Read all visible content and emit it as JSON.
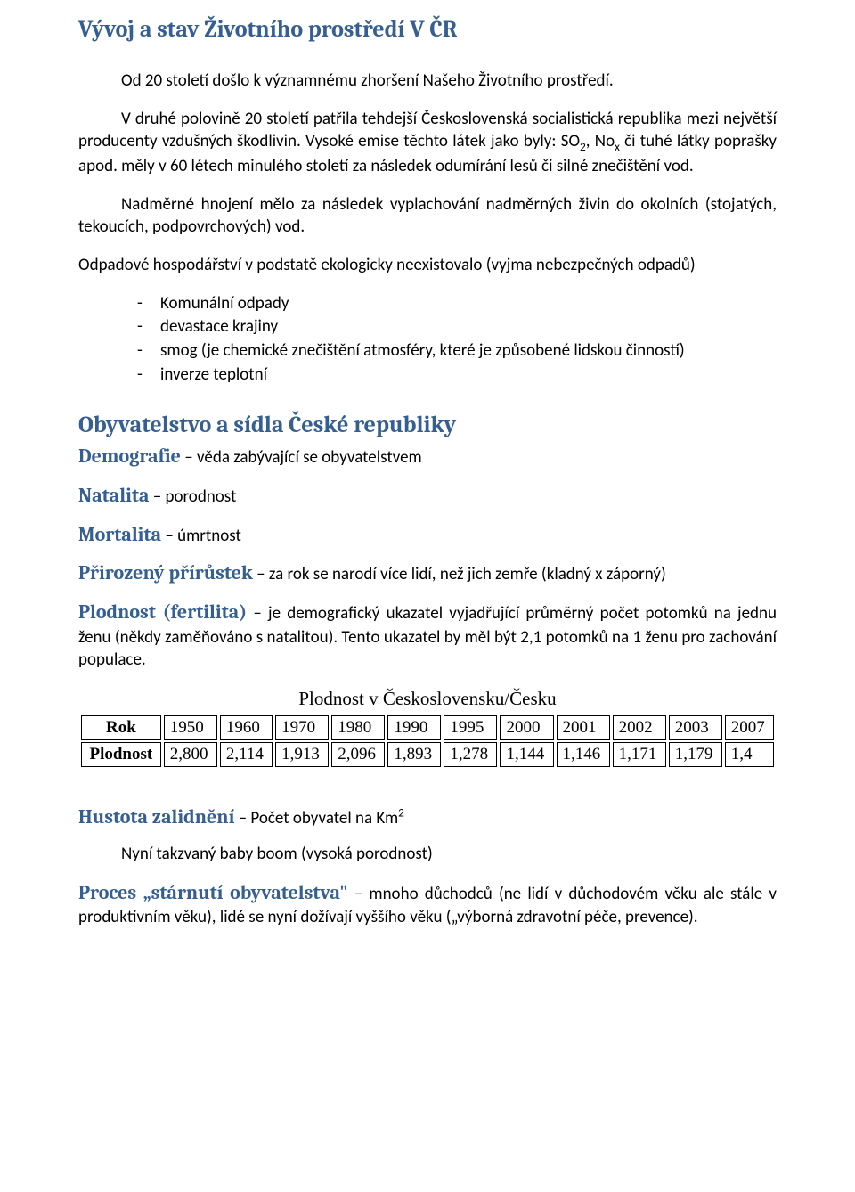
{
  "h1": "Vývoj a stav Životního prostředí V ČR",
  "p1": "Od 20 století došlo k významnému zhoršení Našeho Životního prostředí.",
  "p2a": "V druhé polovině 20 století patřila tehdejší Československá socialistická republika mezi největší producenty vzdušných škodlivin. Vysoké emise těchto látek jako byly: SO",
  "p2sub1": "2",
  "p2b": ", No",
  "p2sub2": "x",
  "p2c": " či tuhé látky poprašky apod. měly v 60 létech minulého století za následek odumírání lesů či silné znečištění vod.",
  "p3": "Nadměrné hnojení mělo za následek vyplachování nadměrných živin do okolních (stojatých, tekoucích, podpovrchových) vod.",
  "p4": "Odpadové hospodářství v podstatě ekologicky neexistovalo (vyjma nebezpečných odpadů)",
  "bullets": [
    "Komunální odpady",
    "devastace krajiny",
    "smog (je chemické znečištění atmosféry, které je způsobené lidskou činností)",
    "inverze teplotní"
  ],
  "h2": "Obyvatelstvo a sídla České republiky",
  "defs": {
    "demografie_t": "Demografie",
    "demografie_d": " – věda zabývající se obyvatelstvem",
    "natalita_t": "Natalita",
    "natalita_d": " – porodnost",
    "mortalita_t": "Mortalita",
    "mortalita_d": " – úmrtnost",
    "prirustek_t": "Přirozený přírůstek",
    "prirustek_d": " – za rok se narodí více lidí, než jich zemře (kladný x záporný)",
    "plodnost_t": "Plodnost (fertilita)",
    "plodnost_d": " – je demografický ukazatel vyjadřující průměrný počet potomků na jednu ženu (někdy zaměňováno s natalitou). Tento ukazatel by měl být 2,1 potomků na 1 ženu pro zachování populace.",
    "hustota_t": "Hustota zalidnění",
    "hustota_d": " – Počet obyvatel na Km",
    "hustota_sup": "2",
    "stari_t": "Proces „stárnutí obyvatelstva\"",
    "stari_d": " – mnoho důchodců (ne lidí v důchodovém věku ale stále v produktivním věku), lidé se nyní dožívají vyššího věku („výborná zdravotní péče, prevence)."
  },
  "table": {
    "caption": "Plodnost v Československu/Česku",
    "row_year": "Rok",
    "row_val": "Plodnost",
    "years": [
      "1950",
      "1960",
      "1970",
      "1980",
      "1990",
      "1995",
      "2000",
      "2001",
      "2002",
      "2003",
      "2007"
    ],
    "vals": [
      "2,800",
      "2,114",
      "1,913",
      "2,096",
      "1,893",
      "1,278",
      "1,144",
      "1,146",
      "1,171",
      "1,179",
      "1,4"
    ]
  },
  "babyboom": "Nyní takzvaný baby boom (vysoká porodnost)"
}
